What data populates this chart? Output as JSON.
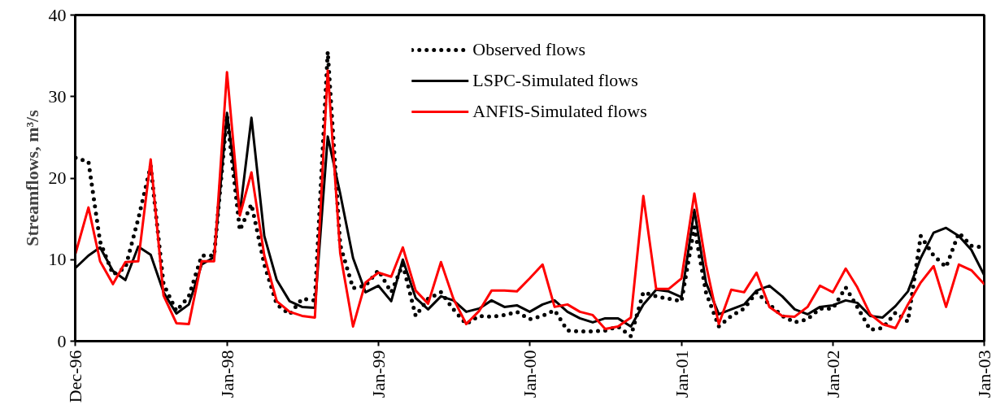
{
  "chart_data": {
    "type": "line",
    "ylabel": "Streamflows, m³/s",
    "x": [
      "1997-01",
      "1997-02",
      "1997-03",
      "1997-04",
      "1997-05",
      "1997-06",
      "1997-07",
      "1997-08",
      "1997-09",
      "1997-10",
      "1997-11",
      "1997-12",
      "1998-01",
      "1998-02",
      "1998-03",
      "1998-04",
      "1998-05",
      "1998-06",
      "1998-07",
      "1998-08",
      "1998-09",
      "1998-10",
      "1998-11",
      "1998-12",
      "1999-01",
      "1999-02",
      "1999-03",
      "1999-04",
      "1999-05",
      "1999-06",
      "1999-07",
      "1999-08",
      "1999-09",
      "1999-10",
      "1999-11",
      "1999-12",
      "2000-01",
      "2000-02",
      "2000-03",
      "2000-04",
      "2000-05",
      "2000-06",
      "2000-07",
      "2000-08",
      "2000-09",
      "2000-10",
      "2000-11",
      "2000-12",
      "2001-01",
      "2001-02",
      "2001-03",
      "2001-04",
      "2001-05",
      "2001-06",
      "2001-07",
      "2001-08",
      "2001-09",
      "2001-10",
      "2001-11",
      "2001-12",
      "2002-01",
      "2002-02",
      "2002-03",
      "2002-04",
      "2002-05",
      "2002-06",
      "2002-07",
      "2002-08",
      "2002-09",
      "2002-10",
      "2002-11",
      "2002-12",
      "2003-01"
    ],
    "series": [
      {
        "name": "Observed flows",
        "color": "#000000",
        "line_style": "dotted",
        "values": [
          22.5,
          22,
          12.2,
          8.2,
          9,
          15,
          21.5,
          7,
          3.7,
          5.5,
          10.5,
          10.5,
          27.7,
          13.6,
          16.8,
          9.4,
          4.5,
          3.3,
          5.2,
          5,
          35.5,
          11.8,
          6.5,
          6.8,
          8.7,
          6,
          9.4,
          3.1,
          5.2,
          6,
          3.9,
          2.1,
          3.1,
          3,
          3.2,
          3.6,
          2.7,
          3.1,
          3.8,
          1.3,
          1.2,
          1.2,
          1.3,
          1.8,
          0.6,
          6,
          5.5,
          5.2,
          4.9,
          14,
          6,
          1.8,
          3.1,
          4,
          6,
          4.5,
          3.1,
          2.3,
          2.7,
          4,
          4,
          6.6,
          4.2,
          1.4,
          1.6,
          3.5,
          2.4,
          12.9,
          10.5,
          9.1,
          13.3,
          11.7,
          11.5
        ]
      },
      {
        "name": "LSPC-Simulated flows",
        "color": "#000000",
        "line_style": "solid",
        "values": [
          9,
          10.5,
          11.5,
          8.6,
          7.5,
          11.6,
          10.6,
          6,
          3.4,
          4.5,
          9.4,
          10.3,
          28,
          15.7,
          27.4,
          12.9,
          7.5,
          4.9,
          4.2,
          4.1,
          25.1,
          18.1,
          10.2,
          6,
          6.8,
          4.9,
          10,
          5.3,
          3.9,
          5.5,
          5,
          3.6,
          4,
          5,
          4.2,
          4.4,
          3.6,
          4.5,
          5,
          3.6,
          2.8,
          2.3,
          2.8,
          2.8,
          1.8,
          4.5,
          6.3,
          6.1,
          5.4,
          16.1,
          7.2,
          3.3,
          3.9,
          4.5,
          6.2,
          6.8,
          5.5,
          3.9,
          3.3,
          4.2,
          4.4,
          5,
          4.7,
          3.1,
          2.9,
          4.3,
          6.1,
          10.2,
          13.3,
          13.9,
          12.9,
          11.2,
          8.1
        ]
      },
      {
        "name": "ANFIS-Simulated flows",
        "color": "#ff0000",
        "line_style": "solid",
        "values": [
          10.8,
          16.4,
          9.8,
          7,
          9.7,
          9.8,
          22.3,
          5.6,
          2.2,
          2.1,
          9.8,
          9.8,
          33,
          15.4,
          20.7,
          10.5,
          4.9,
          3.6,
          3.1,
          2.9,
          33.2,
          10.8,
          1.8,
          7.2,
          8.4,
          7.9,
          11.5,
          6.2,
          4.6,
          9.7,
          5.2,
          2.1,
          3.7,
          6.2,
          6.2,
          6.1,
          7.7,
          9.4,
          4.2,
          4.5,
          3.6,
          3.2,
          1.5,
          1.8,
          2.9,
          17.8,
          6.4,
          6.4,
          7.7,
          18.1,
          9.4,
          2.1,
          6.3,
          6,
          8.4,
          4.2,
          3.1,
          3,
          4.2,
          6.8,
          6,
          8.9,
          6.6,
          3.3,
          2.1,
          1.6,
          4.5,
          7.2,
          9.2,
          4.2,
          9.4,
          8.7,
          7
        ]
      }
    ],
    "xlim": [
      "1996-12-31",
      "2003-01-01"
    ],
    "xticks": [
      {
        "value": "1996-12-31",
        "label": "Dec-96"
      },
      {
        "value": "1998-01-01",
        "label": "Jan-98"
      },
      {
        "value": "1999-01-01",
        "label": "Jan-99"
      },
      {
        "value": "2000-01-01",
        "label": "Jan-00"
      },
      {
        "value": "2001-01-01",
        "label": "Jan-01"
      },
      {
        "value": "2002-01-01",
        "label": "Jan-02"
      },
      {
        "value": "2003-01-01",
        "label": "Jan-03"
      }
    ],
    "ylim": [
      0,
      40
    ],
    "yticks": [
      0,
      10,
      20,
      30,
      40
    ],
    "grid": false,
    "legend": "top",
    "marker": "none"
  }
}
